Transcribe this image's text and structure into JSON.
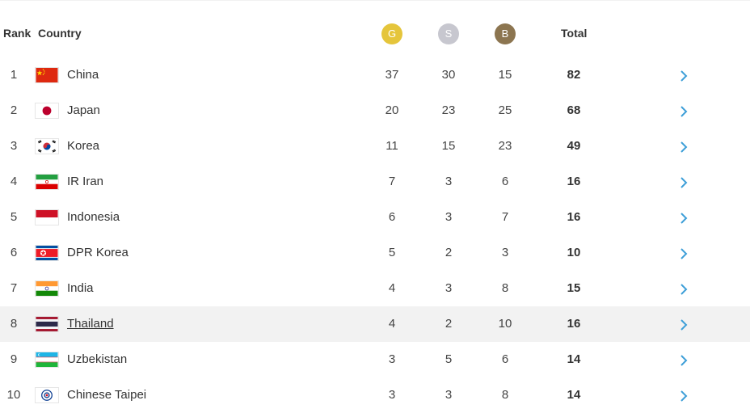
{
  "header": {
    "rank": "Rank",
    "country": "Country",
    "gold": "G",
    "silver": "S",
    "bronze": "B",
    "total": "Total"
  },
  "colors": {
    "gold": "#e5c53b",
    "silver": "#c7c7cf",
    "bronze": "#8c7550",
    "chevron": "#3e9fd8",
    "highlight_row": "#f2f2f2"
  },
  "rows": [
    {
      "rank": "1",
      "country": "China",
      "flag": "china-flag-icon",
      "gold": "37",
      "silver": "30",
      "bronze": "15",
      "total": "82"
    },
    {
      "rank": "2",
      "country": "Japan",
      "flag": "japan-flag-icon",
      "gold": "20",
      "silver": "23",
      "bronze": "25",
      "total": "68"
    },
    {
      "rank": "3",
      "country": "Korea",
      "flag": "korea-flag-icon",
      "gold": "11",
      "silver": "15",
      "bronze": "23",
      "total": "49"
    },
    {
      "rank": "4",
      "country": "IR Iran",
      "flag": "iran-flag-icon",
      "gold": "7",
      "silver": "3",
      "bronze": "6",
      "total": "16"
    },
    {
      "rank": "5",
      "country": "Indonesia",
      "flag": "indonesia-flag-icon",
      "gold": "6",
      "silver": "3",
      "bronze": "7",
      "total": "16"
    },
    {
      "rank": "6",
      "country": "DPR Korea",
      "flag": "dpr-korea-flag-icon",
      "gold": "5",
      "silver": "2",
      "bronze": "3",
      "total": "10"
    },
    {
      "rank": "7",
      "country": "India",
      "flag": "india-flag-icon",
      "gold": "4",
      "silver": "3",
      "bronze": "8",
      "total": "15"
    },
    {
      "rank": "8",
      "country": "Thailand",
      "flag": "thailand-flag-icon",
      "gold": "4",
      "silver": "2",
      "bronze": "10",
      "total": "16"
    },
    {
      "rank": "9",
      "country": "Uzbekistan",
      "flag": "uzbekistan-flag-icon",
      "gold": "3",
      "silver": "5",
      "bronze": "6",
      "total": "14"
    },
    {
      "rank": "10",
      "country": "Chinese Taipei",
      "flag": "chinese-taipei-flag-icon",
      "gold": "3",
      "silver": "3",
      "bronze": "8",
      "total": "14"
    }
  ]
}
